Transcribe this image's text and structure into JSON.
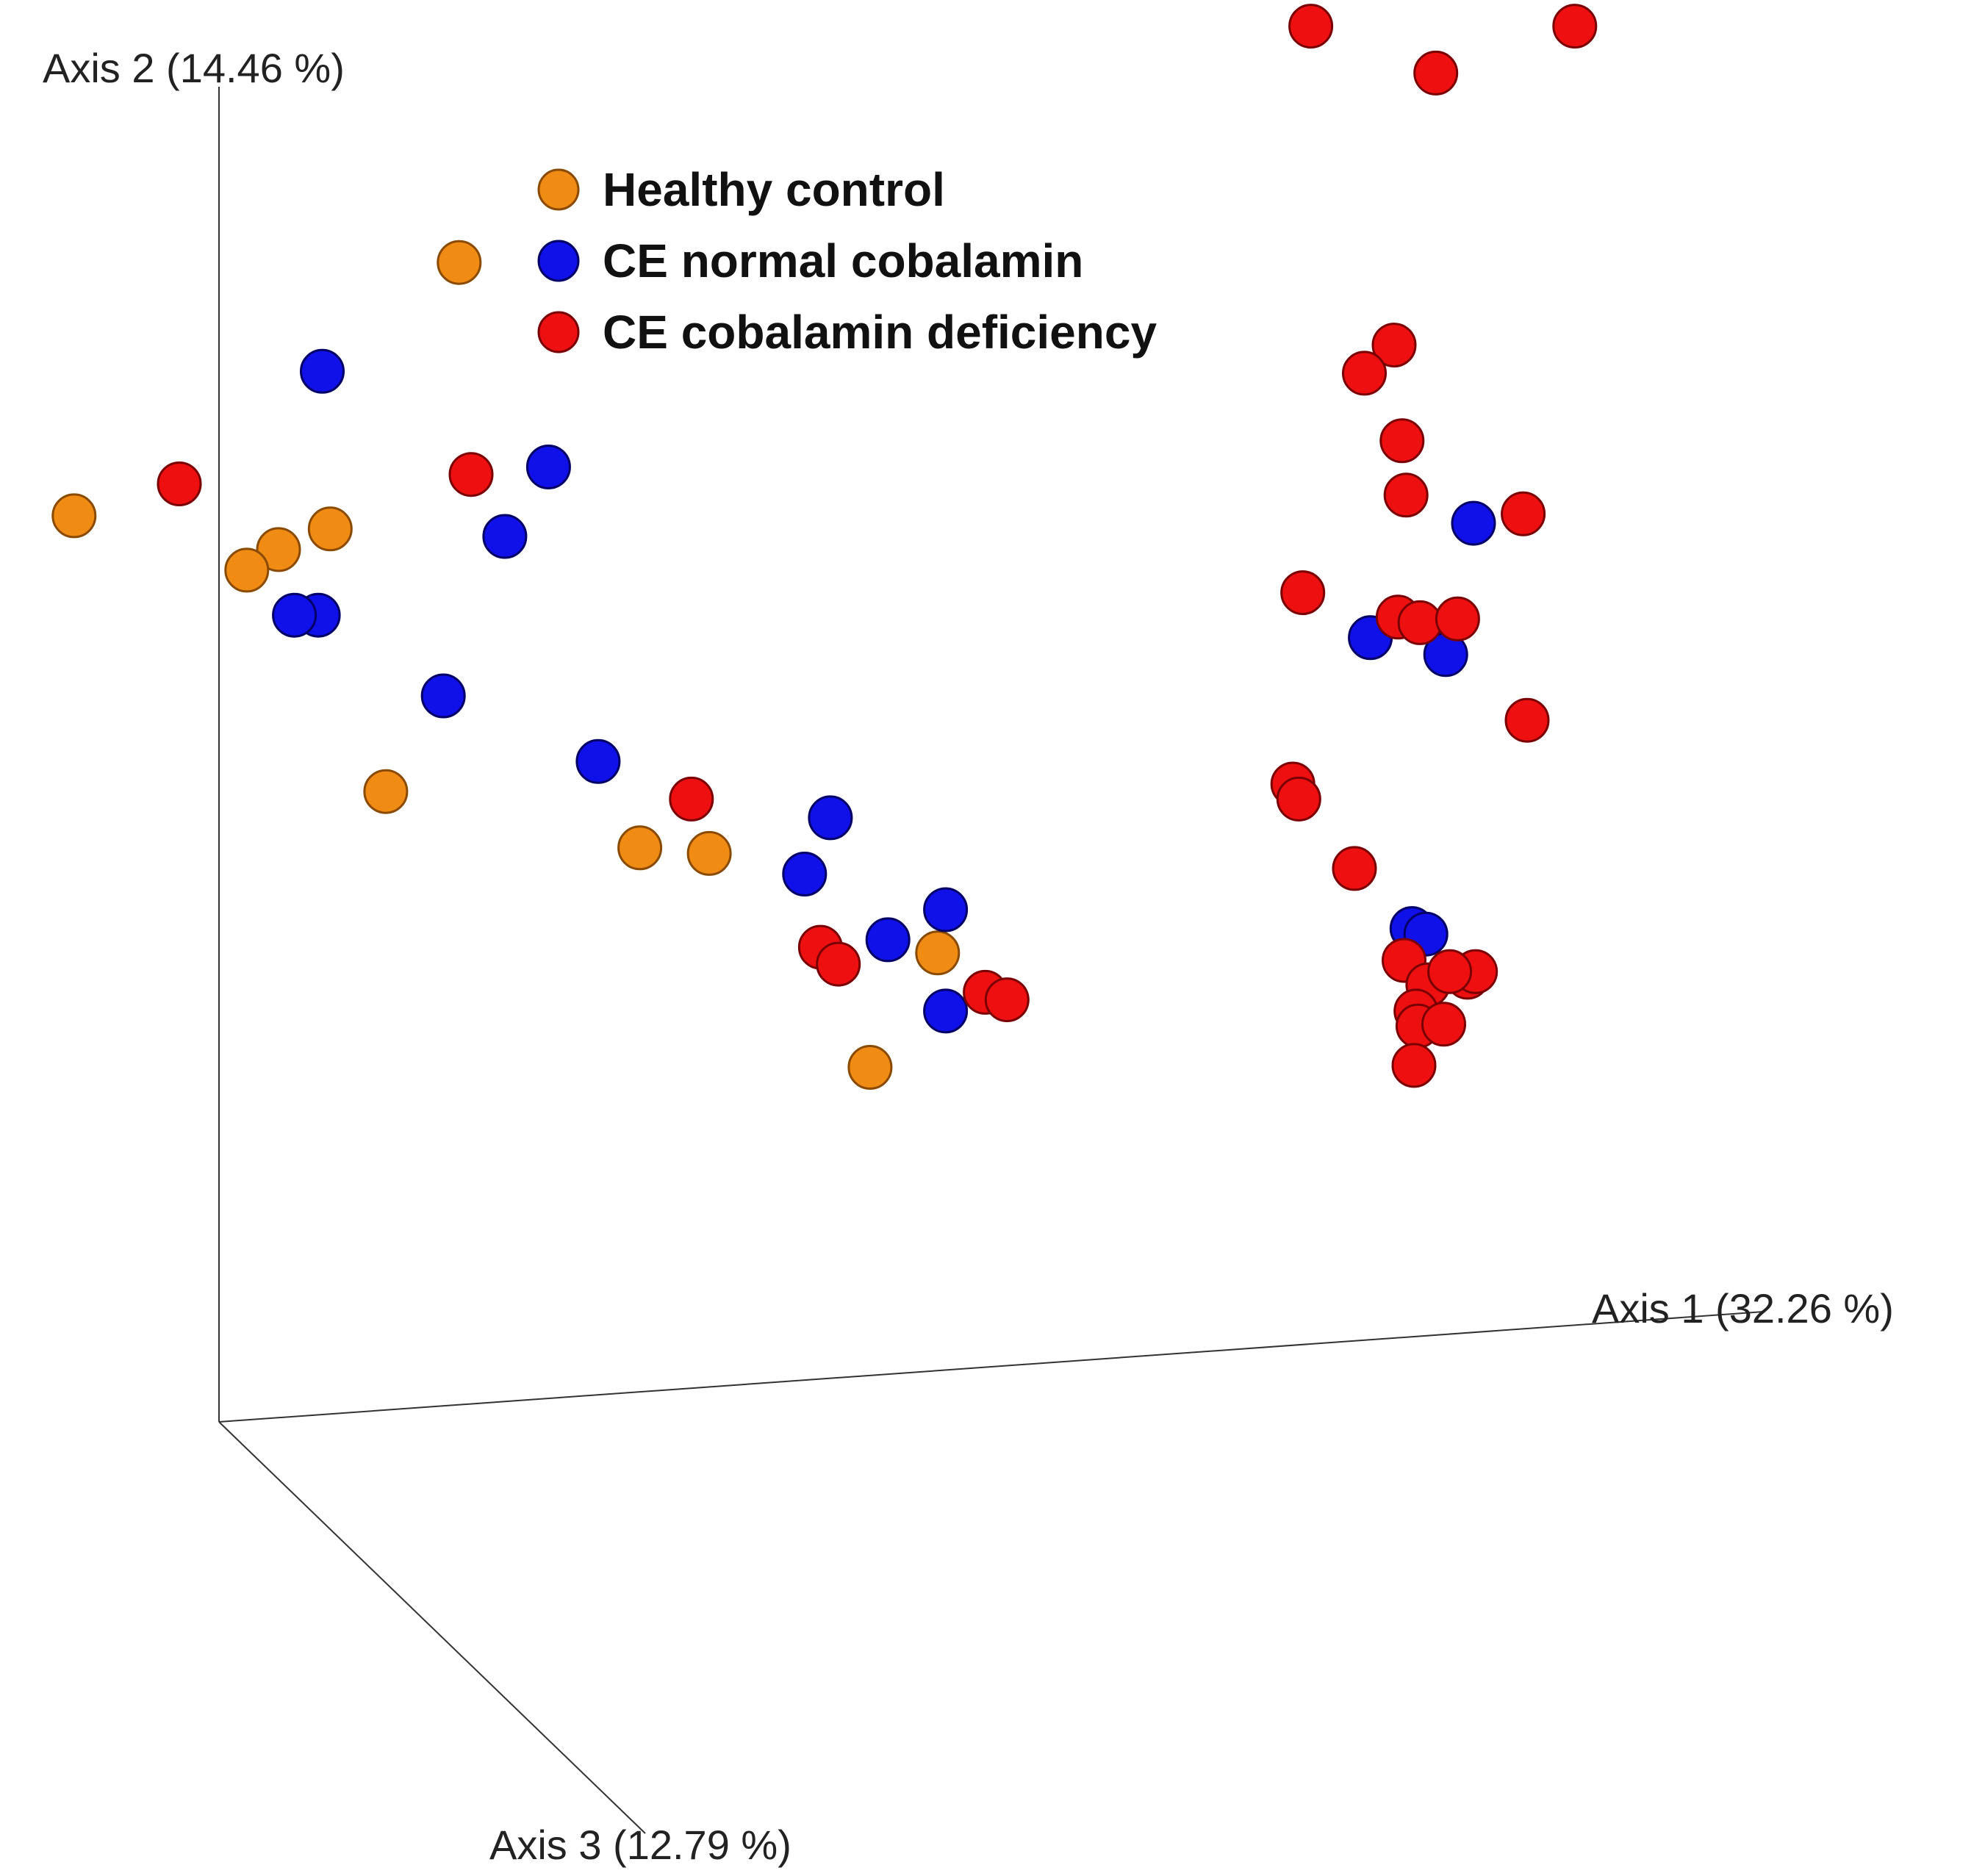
{
  "chart_data": {
    "type": "scatter",
    "subtype": "3d-pcoa-projection",
    "title": "",
    "axes": {
      "x": {
        "label": "Axis 1 (32.26 %)"
      },
      "y": {
        "label": "Axis 2 (14.46 %)"
      },
      "z": {
        "label": "Axis 3 (12.79 %)"
      }
    },
    "legend_position": "top-left",
    "series": [
      {
        "name": "Healthy control",
        "color": "#f08c14",
        "stroke": "#8a4a00",
        "points": [
          [
            0.231,
            -0.052
          ],
          [
            0.037,
            -0.187
          ],
          [
            0.166,
            -0.194
          ],
          [
            0.14,
            -0.205
          ],
          [
            0.124,
            -0.216
          ],
          [
            0.194,
            -0.334
          ],
          [
            0.322,
            -0.364
          ],
          [
            0.357,
            -0.367
          ],
          [
            0.472,
            -0.42
          ],
          [
            0.438,
            -0.481
          ]
        ]
      },
      {
        "name": "CE normal cobalamin",
        "color": "#1010e8",
        "stroke": "#000066",
        "points": [
          [
            0.162,
            -0.11
          ],
          [
            0.276,
            -0.161
          ],
          [
            0.254,
            -0.198
          ],
          [
            0.16,
            -0.24
          ],
          [
            0.148,
            -0.24
          ],
          [
            0.223,
            -0.283
          ],
          [
            0.301,
            -0.318
          ],
          [
            0.418,
            -0.348
          ],
          [
            0.405,
            -0.378
          ],
          [
            0.476,
            -0.397
          ],
          [
            0.447,
            -0.413
          ],
          [
            0.476,
            -0.451
          ],
          [
            0.742,
            -0.191
          ],
          [
            0.69,
            -0.252
          ],
          [
            0.728,
            -0.261
          ],
          [
            0.711,
            -0.407
          ],
          [
            0.718,
            -0.41
          ]
        ]
      },
      {
        "name": "CE cobalamin deficiency",
        "color": "#ee1010",
        "stroke": "#7a0000",
        "points": [
          [
            0.66,
            0.074
          ],
          [
            0.793,
            0.074
          ],
          [
            0.723,
            0.049
          ],
          [
            0.702,
            -0.096
          ],
          [
            0.687,
            -0.111
          ],
          [
            0.706,
            -0.147
          ],
          [
            0.708,
            -0.176
          ],
          [
            0.656,
            -0.228
          ],
          [
            0.704,
            -0.241
          ],
          [
            0.715,
            -0.244
          ],
          [
            0.734,
            -0.242
          ],
          [
            0.767,
            -0.186
          ],
          [
            0.769,
            -0.296
          ],
          [
            0.651,
            -0.33
          ],
          [
            0.682,
            -0.375
          ],
          [
            0.09,
            -0.17
          ],
          [
            0.237,
            -0.165
          ],
          [
            0.348,
            -0.338
          ],
          [
            0.413,
            -0.417
          ],
          [
            0.422,
            -0.426
          ],
          [
            0.496,
            -0.441
          ],
          [
            0.507,
            -0.445
          ],
          [
            0.654,
            -0.338
          ],
          [
            0.707,
            -0.424
          ],
          [
            0.719,
            -0.437
          ],
          [
            0.739,
            -0.433
          ],
          [
            0.743,
            -0.43
          ],
          [
            0.713,
            -0.451
          ],
          [
            0.714,
            -0.459
          ],
          [
            0.712,
            -0.48
          ],
          [
            0.727,
            -0.458
          ],
          [
            0.73,
            -0.43
          ]
        ]
      }
    ]
  }
}
